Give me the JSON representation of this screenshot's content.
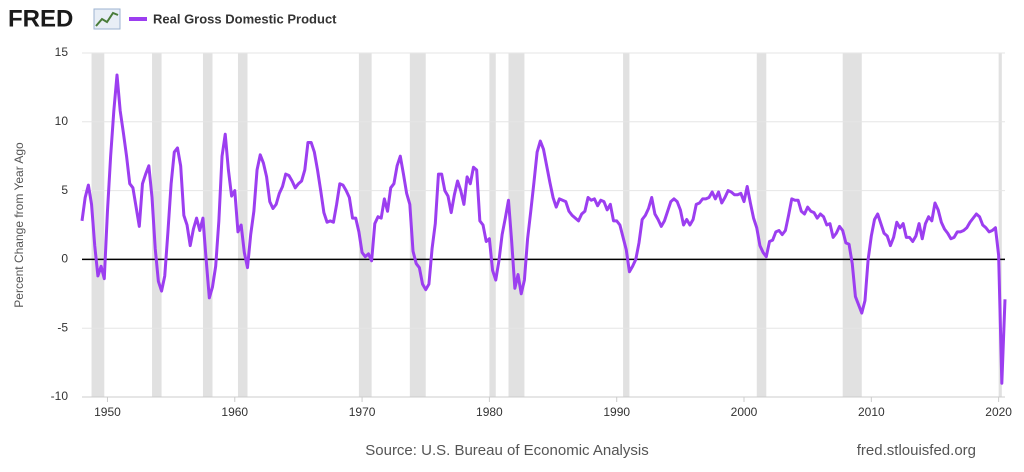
{
  "logo": "FRED",
  "chart_data": {
    "type": "line",
    "y_axis_label": "Percent Change from Year Ago",
    "source": "Source: U.S. Bureau of Economic Analysis",
    "site": "fred.stlouisfed.org",
    "xlim": [
      1948,
      2020.5
    ],
    "xticks": [
      1950,
      1960,
      1970,
      1980,
      1990,
      2000,
      2010,
      2020
    ],
    "ylim": [
      -10,
      15
    ],
    "yticks": [
      -10,
      -5,
      0,
      5,
      10,
      15
    ],
    "grid": true,
    "zero_line_color": "#000000",
    "recession_color": "#e1e1e1",
    "recessions": [
      [
        1948.75,
        1949.75
      ],
      [
        1953.5,
        1954.25
      ],
      [
        1957.5,
        1958.25
      ],
      [
        1960.25,
        1961
      ],
      [
        1969.75,
        1970.75
      ],
      [
        1973.75,
        1975
      ],
      [
        1980,
        1980.5
      ],
      [
        1981.5,
        1982.75
      ],
      [
        1990.5,
        1991
      ],
      [
        2001,
        2001.75
      ],
      [
        2007.75,
        2009.25
      ],
      [
        2020,
        2020.25
      ]
    ],
    "x": [
      1948,
      1948.25,
      1948.5,
      1948.75,
      1949,
      1949.25,
      1949.5,
      1949.75,
      1950,
      1950.25,
      1950.5,
      1950.75,
      1951,
      1951.25,
      1951.5,
      1951.75,
      1952,
      1952.25,
      1952.5,
      1952.75,
      1953,
      1953.25,
      1953.5,
      1953.75,
      1954,
      1954.25,
      1954.5,
      1954.75,
      1955,
      1955.25,
      1955.5,
      1955.75,
      1956,
      1956.25,
      1956.5,
      1956.75,
      1957,
      1957.25,
      1957.5,
      1957.75,
      1958,
      1958.25,
      1958.5,
      1958.75,
      1959,
      1959.25,
      1959.5,
      1959.75,
      1960,
      1960.25,
      1960.5,
      1960.75,
      1961,
      1961.25,
      1961.5,
      1961.75,
      1962,
      1962.25,
      1962.5,
      1962.75,
      1963,
      1963.25,
      1963.5,
      1963.75,
      1964,
      1964.25,
      1964.5,
      1964.75,
      1965,
      1965.25,
      1965.5,
      1965.75,
      1966,
      1966.25,
      1966.5,
      1966.75,
      1967,
      1967.25,
      1967.5,
      1967.75,
      1968,
      1968.25,
      1968.5,
      1968.75,
      1969,
      1969.25,
      1969.5,
      1969.75,
      1970,
      1970.25,
      1970.5,
      1970.75,
      1971,
      1971.25,
      1971.5,
      1971.75,
      1972,
      1972.25,
      1972.5,
      1972.75,
      1973,
      1973.25,
      1973.5,
      1973.75,
      1974,
      1974.25,
      1974.5,
      1974.75,
      1975,
      1975.25,
      1975.5,
      1975.75,
      1976,
      1976.25,
      1976.5,
      1976.75,
      1977,
      1977.25,
      1977.5,
      1977.75,
      1978,
      1978.25,
      1978.5,
      1978.75,
      1979,
      1979.25,
      1979.5,
      1979.75,
      1980,
      1980.25,
      1980.5,
      1980.75,
      1981,
      1981.25,
      1981.5,
      1981.75,
      1982,
      1982.25,
      1982.5,
      1982.75,
      1983,
      1983.25,
      1983.5,
      1983.75,
      1984,
      1984.25,
      1984.5,
      1984.75,
      1985,
      1985.25,
      1985.5,
      1985.75,
      1986,
      1986.25,
      1986.5,
      1986.75,
      1987,
      1987.25,
      1987.5,
      1987.75,
      1988,
      1988.25,
      1988.5,
      1988.75,
      1989,
      1989.25,
      1989.5,
      1989.75,
      1990,
      1990.25,
      1990.5,
      1990.75,
      1991,
      1991.25,
      1991.5,
      1991.75,
      1992,
      1992.25,
      1992.5,
      1992.75,
      1993,
      1993.25,
      1993.5,
      1993.75,
      1994,
      1994.25,
      1994.5,
      1994.75,
      1995,
      1995.25,
      1995.5,
      1995.75,
      1996,
      1996.25,
      1996.5,
      1996.75,
      1997,
      1997.25,
      1997.5,
      1997.75,
      1998,
      1998.25,
      1998.5,
      1998.75,
      1999,
      1999.25,
      1999.5,
      1999.75,
      2000,
      2000.25,
      2000.5,
      2000.75,
      2001,
      2001.25,
      2001.5,
      2001.75,
      2002,
      2002.25,
      2002.5,
      2002.75,
      2003,
      2003.25,
      2003.5,
      2003.75,
      2004,
      2004.25,
      2004.5,
      2004.75,
      2005,
      2005.25,
      2005.5,
      2005.75,
      2006,
      2006.25,
      2006.5,
      2006.75,
      2007,
      2007.25,
      2007.5,
      2007.75,
      2008,
      2008.25,
      2008.5,
      2008.75,
      2009,
      2009.25,
      2009.5,
      2009.75,
      2010,
      2010.25,
      2010.5,
      2010.75,
      2011,
      2011.25,
      2011.5,
      2011.75,
      2012,
      2012.25,
      2012.5,
      2012.75,
      2013,
      2013.25,
      2013.5,
      2013.75,
      2014,
      2014.25,
      2014.5,
      2014.75,
      2015,
      2015.25,
      2015.5,
      2015.75,
      2016,
      2016.25,
      2016.5,
      2016.75,
      2017,
      2017.25,
      2017.5,
      2017.75,
      2018,
      2018.25,
      2018.5,
      2018.75,
      2019,
      2019.25,
      2019.5,
      2019.75,
      2020,
      2020.25,
      2020.5
    ],
    "series": [
      {
        "name": "Real Gross Domestic Product",
        "color": "#9c3ef0",
        "values": [
          2.8,
          4.5,
          5.4,
          4.0,
          1.0,
          -1.2,
          -0.5,
          -1.4,
          3.5,
          7.5,
          10.8,
          13.4,
          10.8,
          9.2,
          7.5,
          5.5,
          5.2,
          3.8,
          2.4,
          5.5,
          6.2,
          6.8,
          4.5,
          0.8,
          -1.6,
          -2.3,
          -1.2,
          2.0,
          5.5,
          7.8,
          8.1,
          6.8,
          3.2,
          2.5,
          1.0,
          2.2,
          3.0,
          2.1,
          3.0,
          0.0,
          -2.8,
          -2.0,
          -0.5,
          2.8,
          7.5,
          9.1,
          6.5,
          4.6,
          5.0,
          2.0,
          2.5,
          0.5,
          -0.6,
          1.8,
          3.5,
          6.5,
          7.6,
          7.0,
          6.0,
          4.2,
          3.7,
          4.0,
          4.8,
          5.3,
          6.2,
          6.1,
          5.7,
          5.2,
          5.5,
          5.7,
          6.5,
          8.5,
          8.5,
          7.8,
          6.5,
          5.0,
          3.4,
          2.7,
          2.8,
          2.7,
          4.0,
          5.5,
          5.4,
          5.0,
          4.5,
          3.0,
          3.0,
          2.0,
          0.5,
          0.2,
          0.4,
          -0.1,
          2.6,
          3.1,
          3.0,
          4.4,
          3.5,
          5.2,
          5.5,
          6.8,
          7.5,
          6.2,
          4.8,
          4.0,
          0.6,
          -0.3,
          -0.6,
          -1.8,
          -2.2,
          -1.8,
          0.8,
          2.6,
          6.2,
          6.2,
          5.0,
          4.6,
          3.4,
          4.7,
          5.7,
          5.0,
          4.0,
          6.0,
          5.5,
          6.7,
          6.5,
          2.8,
          2.5,
          1.3,
          1.5,
          -0.8,
          -1.5,
          -0.1,
          1.8,
          3.0,
          4.3,
          1.3,
          -2.1,
          -1.1,
          -2.5,
          -1.5,
          1.5,
          3.5,
          5.6,
          7.8,
          8.6,
          8.0,
          6.8,
          5.6,
          4.5,
          3.8,
          4.4,
          4.3,
          4.2,
          3.5,
          3.2,
          3.0,
          2.8,
          3.3,
          3.5,
          4.5,
          4.3,
          4.4,
          3.9,
          4.3,
          4.2,
          3.6,
          4.0,
          2.8,
          2.8,
          2.5,
          1.6,
          0.7,
          -0.9,
          -0.5,
          0.0,
          1.2,
          2.9,
          3.2,
          3.7,
          4.5,
          3.3,
          2.9,
          2.4,
          2.8,
          3.5,
          4.2,
          4.4,
          4.2,
          3.6,
          2.5,
          2.9,
          2.5,
          2.9,
          4.0,
          4.1,
          4.4,
          4.4,
          4.5,
          4.9,
          4.4,
          4.9,
          4.1,
          4.5,
          5.0,
          4.9,
          4.7,
          4.7,
          4.8,
          4.2,
          5.3,
          4.1,
          3.0,
          2.3,
          1.0,
          0.5,
          0.2,
          1.3,
          1.4,
          2.0,
          2.1,
          1.8,
          2.1,
          3.2,
          4.4,
          4.3,
          4.3,
          3.5,
          3.3,
          3.8,
          3.5,
          3.4,
          3.0,
          3.3,
          3.1,
          2.5,
          2.6,
          1.6,
          1.9,
          2.4,
          2.1,
          1.2,
          1.1,
          -0.3,
          -2.7,
          -3.3,
          -3.9,
          -3.0,
          0.0,
          1.7,
          2.9,
          3.3,
          2.6,
          1.9,
          1.7,
          1.0,
          1.6,
          2.7,
          2.3,
          2.6,
          1.6,
          1.6,
          1.3,
          1.7,
          2.6,
          1.5,
          2.6,
          3.1,
          2.8,
          4.1,
          3.6,
          2.7,
          2.2,
          1.9,
          1.5,
          1.6,
          2.0,
          2.0,
          2.1,
          2.3,
          2.7,
          3.0,
          3.3,
          3.1,
          2.5,
          2.3,
          2.0,
          2.1,
          2.3,
          0.3,
          -9.0,
          -2.9
        ]
      }
    ]
  }
}
